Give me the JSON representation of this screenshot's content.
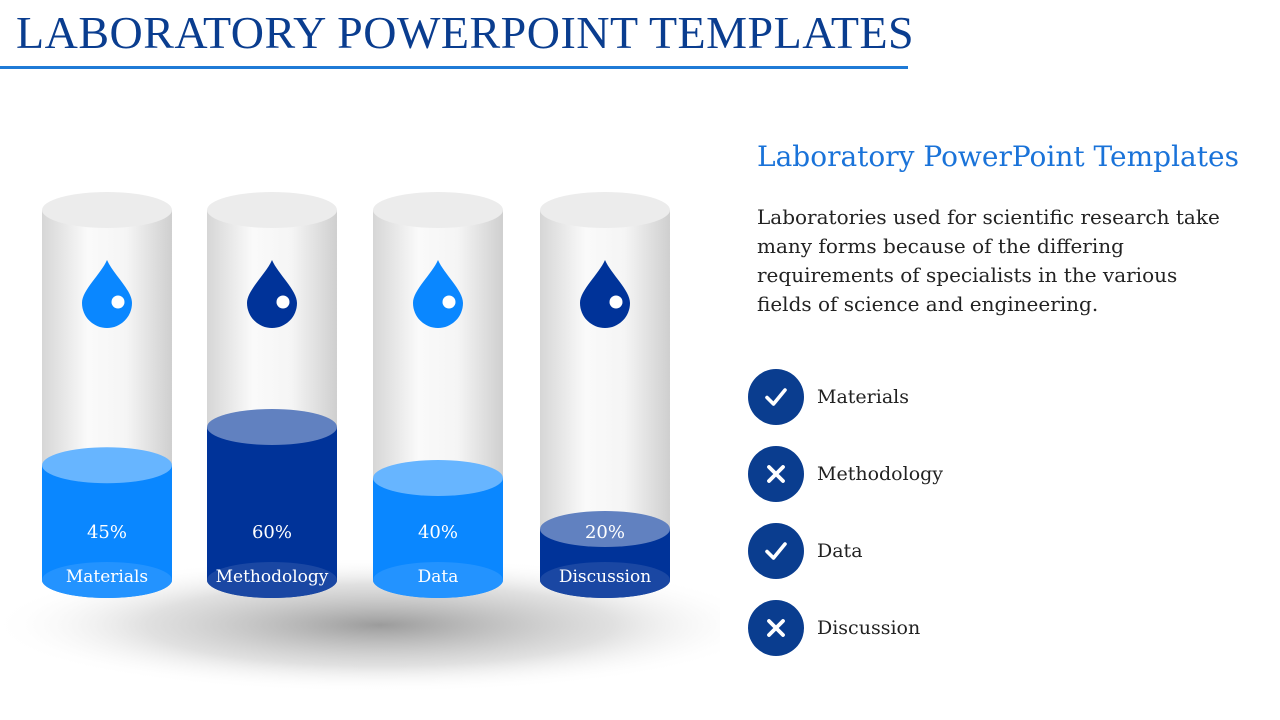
{
  "slide": {
    "title": "LABORATORY POWERPOINT TEMPLATES"
  },
  "side": {
    "title": "Laboratory PowerPoint Templates",
    "description": "Laboratories used for scientific research take many forms because of the differing requirements of specialists in the various fields of science and engineering."
  },
  "checklist": [
    {
      "label": "Materials",
      "status": "check",
      "icon": "check-icon"
    },
    {
      "label": "Methodology",
      "status": "cross",
      "icon": "cross-icon"
    },
    {
      "label": "Data",
      "status": "check",
      "icon": "check-icon"
    },
    {
      "label": "Discussion",
      "status": "cross",
      "icon": "cross-icon"
    }
  ],
  "chart_data": {
    "type": "bar",
    "categories": [
      "Materials",
      "Methodology",
      "Data",
      "Discussion"
    ],
    "values": [
      45,
      60,
      40,
      20
    ],
    "value_labels": [
      "45%",
      "60%",
      "40%",
      "20%"
    ],
    "fill_colors": [
      "#0a87ff",
      "#003399",
      "#0a87ff",
      "#003399"
    ],
    "drop_icon": "water-drop-icon",
    "colors": {
      "light": "#0a87ff",
      "dark": "#003399",
      "accent": "#1a73d9",
      "title": "#0a3d8f"
    }
  }
}
